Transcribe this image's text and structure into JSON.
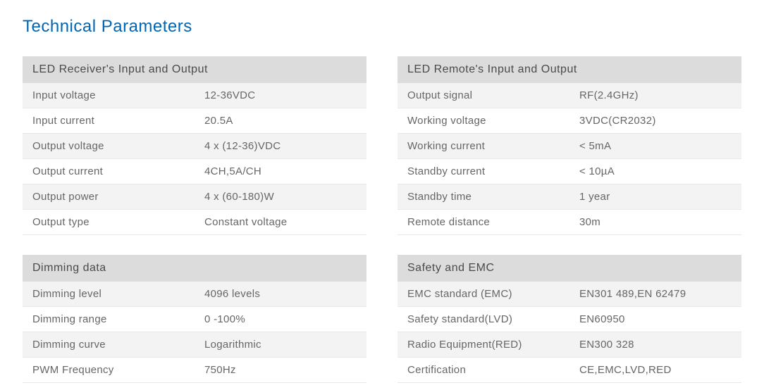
{
  "page": {
    "title": "Technical Parameters",
    "title_color": "#0066b3",
    "background_color": "#ffffff",
    "text_color": "#666666",
    "header_bg": "#dcdcdc",
    "row_alt_bg": "#f3f3f3",
    "border_color": "#e8e8e8",
    "font_family": "Helvetica Neue, Arial, sans-serif",
    "title_fontsize": 24,
    "body_fontsize": 15
  },
  "tables": {
    "receiver": {
      "header": "LED Receiver's Input and Output",
      "rows": [
        {
          "label": "Input voltage",
          "value": "12-36VDC"
        },
        {
          "label": "Input current",
          "value": "20.5A"
        },
        {
          "label": "Output voltage",
          "value": "4 x (12-36)VDC"
        },
        {
          "label": "Output current",
          "value": "4CH,5A/CH"
        },
        {
          "label": "Output power",
          "value": "4 x (60-180)W"
        },
        {
          "label": "Output type",
          "value": "Constant voltage"
        }
      ]
    },
    "dimming": {
      "header": "Dimming data",
      "rows": [
        {
          "label": "Dimming level",
          "value": "4096 levels"
        },
        {
          "label": "Dimming range",
          "value": "0 -100%"
        },
        {
          "label": "Dimming curve",
          "value": "Logarithmic"
        },
        {
          "label": "PWM Frequency",
          "value": "750Hz"
        }
      ]
    },
    "remote": {
      "header": "LED Remote's Input and Output",
      "rows": [
        {
          "label": "Output signal",
          "value": "RF(2.4GHz)"
        },
        {
          "label": "Working voltage",
          "value": "3VDC(CR2032)"
        },
        {
          "label": "Working current",
          "value": "< 5mA"
        },
        {
          "label": "Standby current",
          "value": "< 10µA"
        },
        {
          "label": "Standby time",
          "value": "1 year"
        },
        {
          "label": "Remote distance",
          "value": "30m"
        }
      ]
    },
    "safety": {
      "header": "Safety and EMC",
      "rows": [
        {
          "label": "EMC standard (EMC)",
          "value": "EN301 489,EN 62479"
        },
        {
          "label": "Safety standard(LVD)",
          "value": "EN60950"
        },
        {
          "label": "Radio Equipment(RED)",
          "value": "EN300 328"
        },
        {
          "label": "Certification",
          "value": "CE,EMC,LVD,RED"
        }
      ]
    }
  }
}
